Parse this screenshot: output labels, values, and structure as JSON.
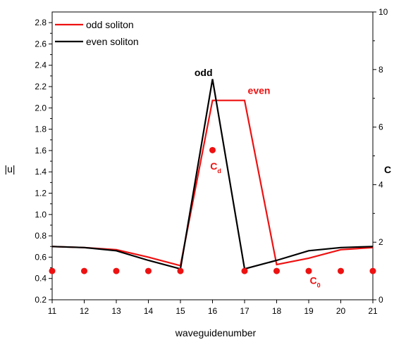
{
  "chart_data": {
    "type": "line",
    "x_label": "waveguidenumber",
    "y_left_label": "|u|",
    "y_right_label": "C",
    "x": [
      11,
      12,
      13,
      14,
      15,
      16,
      17,
      18,
      19,
      20,
      21
    ],
    "x_ticks": [
      "11",
      "12",
      "13",
      "14",
      "15",
      "16",
      "17",
      "18",
      "19",
      "20",
      "21"
    ],
    "y_left_ticks": [
      "0.2",
      "0.4",
      "0.6",
      "0.8",
      "1.0",
      "1.2",
      "1.4",
      "1.6",
      "1.8",
      "2.0",
      "2.2",
      "2.4",
      "2.6",
      "2.8"
    ],
    "y_right_ticks": [
      "0",
      "2",
      "4",
      "6",
      "8",
      "10"
    ],
    "xlim": [
      11,
      21
    ],
    "y_left_lim": [
      0.2,
      2.9
    ],
    "y_right_lim": [
      0,
      10
    ],
    "grid": false,
    "legend_position": "top-left",
    "series": [
      {
        "name": "odd soliton",
        "color": "#ee1111",
        "axis": "left",
        "values": [
          0.7,
          0.69,
          0.67,
          0.6,
          0.52,
          2.07,
          2.07,
          0.53,
          0.59,
          0.67,
          0.69
        ]
      },
      {
        "name": "even soliton",
        "color": "#000000",
        "axis": "left",
        "values": [
          0.7,
          0.69,
          0.66,
          0.57,
          0.49,
          2.27,
          0.49,
          0.57,
          0.66,
          0.69,
          0.7
        ]
      }
    ],
    "coupling": {
      "color": "#ee1111",
      "axis": "right",
      "x": [
        11,
        12,
        13,
        14,
        15,
        16,
        17,
        18,
        19,
        20,
        21
      ],
      "values": [
        1.0,
        1.0,
        1.0,
        1.0,
        1.0,
        5.2,
        1.0,
        1.0,
        1.0,
        1.0,
        1.0
      ]
    },
    "annotations": [
      {
        "text": "odd",
        "sub": "",
        "x": 16,
        "y": 2.3,
        "color": "#000000",
        "anchor": "end"
      },
      {
        "text": "even",
        "sub": "",
        "x": 17.1,
        "y": 2.13,
        "color": "#ee1111",
        "anchor": "start"
      },
      {
        "text": "C",
        "sub": "d",
        "x": 16.1,
        "y": 1.42,
        "color": "#ee1111",
        "anchor": "middle"
      },
      {
        "text": "C",
        "sub": "0",
        "x": 19.2,
        "y": 0.35,
        "color": "#ee1111",
        "anchor": "middle"
      }
    ]
  }
}
